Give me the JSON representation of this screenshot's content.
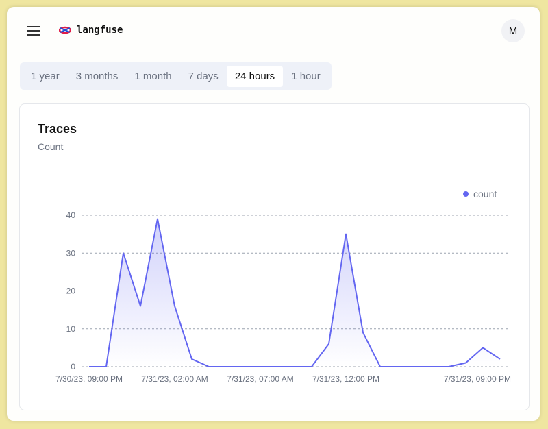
{
  "header": {
    "logo_text": "langfuse",
    "avatar_initial": "M"
  },
  "tabs": [
    {
      "label": "1 year"
    },
    {
      "label": "3 months"
    },
    {
      "label": "1 month"
    },
    {
      "label": "7 days"
    },
    {
      "label": "24 hours",
      "active": true
    },
    {
      "label": "1 hour"
    }
  ],
  "card": {
    "title": "Traces",
    "subtitle": "Count"
  },
  "chart_data": {
    "type": "area",
    "title": "Traces",
    "subtitle": "Count",
    "x": [
      "7/30/23, 09:00 PM",
      "7/30/23, 10:00 PM",
      "7/30/23, 11:00 PM",
      "7/31/23, 12:00 AM",
      "7/31/23, 01:00 AM",
      "7/31/23, 02:00 AM",
      "7/31/23, 03:00 AM",
      "7/31/23, 04:00 AM",
      "7/31/23, 05:00 AM",
      "7/31/23, 06:00 AM",
      "7/31/23, 07:00 AM",
      "7/31/23, 08:00 AM",
      "7/31/23, 09:00 AM",
      "7/31/23, 10:00 AM",
      "7/31/23, 11:00 AM",
      "7/31/23, 12:00 PM",
      "7/31/23, 01:00 PM",
      "7/31/23, 02:00 PM",
      "7/31/23, 03:00 PM",
      "7/31/23, 04:00 PM",
      "7/31/23, 05:00 PM",
      "7/31/23, 06:00 PM",
      "7/31/23, 07:00 PM",
      "7/31/23, 08:00 PM",
      "7/31/23, 09:00 PM"
    ],
    "series": [
      {
        "name": "count",
        "color": "#6366f1",
        "values": [
          0,
          0,
          30,
          16,
          39,
          16,
          2,
          0,
          0,
          0,
          0,
          0,
          0,
          0,
          6,
          35,
          9,
          0,
          0,
          0,
          0,
          0,
          1,
          5,
          2
        ]
      }
    ],
    "x_tick_labels": [
      "7/30/23, 09:00 PM",
      "7/31/23, 02:00 AM",
      "7/31/23, 07:00 AM",
      "7/31/23, 12:00 PM",
      "7/31/23, 09:00 PM"
    ],
    "y_ticks": [
      0,
      10,
      20,
      30,
      40
    ],
    "ylim": [
      0,
      40
    ],
    "grid": true,
    "legend": "top-right"
  }
}
